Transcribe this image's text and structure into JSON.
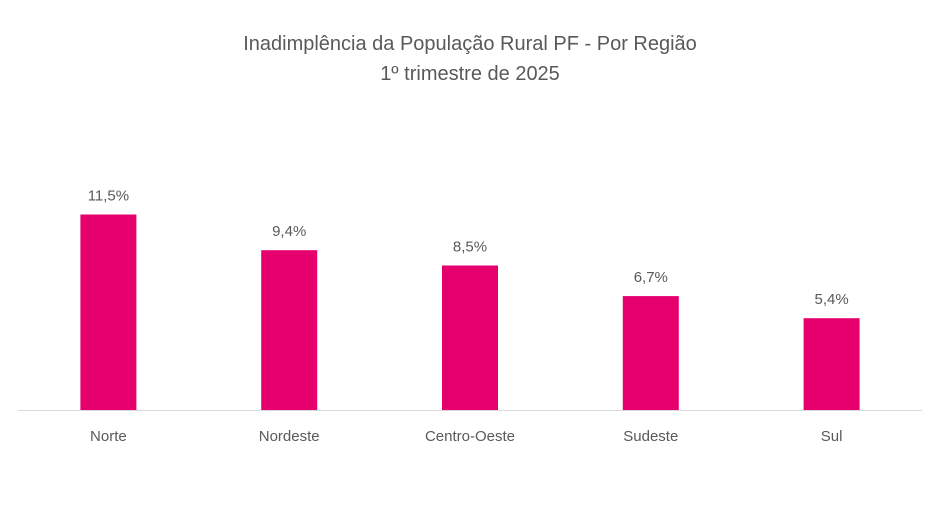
{
  "chart_data": {
    "type": "bar",
    "title": "Inadimplência da População Rural PF - Por Região",
    "subtitle": "1º trimestre de 2025",
    "categories": [
      "Norte",
      "Nordeste",
      "Centro-Oeste",
      "Sudeste",
      "Sul"
    ],
    "values": [
      11.5,
      9.4,
      8.5,
      6.7,
      5.4
    ],
    "data_labels": [
      "11,5%",
      "9,4%",
      "8,5%",
      "6,7%",
      "5,4%"
    ],
    "xlabel": "",
    "ylabel": "",
    "ylim": [
      0,
      13
    ],
    "grid": false,
    "legend": "none",
    "bar_color": "#E6006E",
    "axis_color": "#D9D9D9"
  }
}
